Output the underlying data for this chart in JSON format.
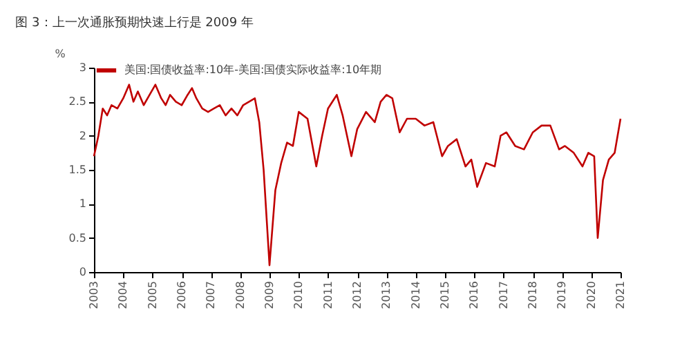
{
  "chart_data": {
    "type": "line",
    "title": "图 3：上一次通胀预期快速上行是 2009 年",
    "ylabel": "%",
    "legend": "top",
    "x": [
      2003.0,
      2003.15,
      2003.3,
      2003.45,
      2003.6,
      2003.8,
      2004.0,
      2004.2,
      2004.35,
      2004.5,
      2004.7,
      2004.9,
      2005.1,
      2005.3,
      2005.45,
      2005.6,
      2005.8,
      2006.0,
      2006.2,
      2006.35,
      2006.5,
      2006.7,
      2006.9,
      2007.1,
      2007.3,
      2007.5,
      2007.7,
      2007.9,
      2008.1,
      2008.3,
      2008.5,
      2008.65,
      2008.8,
      2008.9,
      2009.0,
      2009.2,
      2009.4,
      2009.6,
      2009.8,
      2010.0,
      2010.3,
      2010.6,
      2010.8,
      2011.0,
      2011.3,
      2011.5,
      2011.8,
      2012.0,
      2012.3,
      2012.6,
      2012.8,
      2013.0,
      2013.2,
      2013.45,
      2013.7,
      2014.0,
      2014.3,
      2014.6,
      2014.9,
      2015.1,
      2015.4,
      2015.7,
      2015.9,
      2016.1,
      2016.4,
      2016.7,
      2016.9,
      2017.1,
      2017.4,
      2017.7,
      2018.0,
      2018.3,
      2018.6,
      2018.9,
      2019.1,
      2019.4,
      2019.7,
      2019.9,
      2020.1,
      2020.22,
      2020.4,
      2020.6,
      2020.8,
      2021.0
    ],
    "series": [
      {
        "name": "美国:国债收益率:10年-美国:国债实际收益率:10年期",
        "color": "#c00000",
        "values": [
          1.7,
          2.0,
          2.4,
          2.3,
          2.45,
          2.4,
          2.55,
          2.75,
          2.5,
          2.65,
          2.45,
          2.6,
          2.75,
          2.55,
          2.45,
          2.6,
          2.5,
          2.45,
          2.6,
          2.7,
          2.55,
          2.4,
          2.35,
          2.4,
          2.45,
          2.3,
          2.4,
          2.3,
          2.45,
          2.5,
          2.55,
          2.2,
          1.5,
          0.8,
          0.1,
          1.2,
          1.6,
          1.9,
          1.85,
          2.35,
          2.25,
          1.55,
          2.0,
          2.4,
          2.6,
          2.3,
          1.7,
          2.1,
          2.35,
          2.2,
          2.5,
          2.6,
          2.55,
          2.05,
          2.25,
          2.25,
          2.15,
          2.2,
          1.7,
          1.85,
          1.95,
          1.55,
          1.65,
          1.25,
          1.6,
          1.55,
          2.0,
          2.05,
          1.85,
          1.8,
          2.05,
          2.15,
          2.15,
          1.8,
          1.85,
          1.75,
          1.55,
          1.75,
          1.7,
          0.5,
          1.35,
          1.65,
          1.75,
          2.25
        ]
      }
    ],
    "xlim": [
      2003,
      2021
    ],
    "xticks": [
      2003,
      2004,
      2005,
      2006,
      2007,
      2008,
      2009,
      2010,
      2011,
      2012,
      2013,
      2014,
      2015,
      2016,
      2017,
      2018,
      2019,
      2020,
      2021
    ],
    "ylim": [
      0,
      3
    ],
    "yticks": [
      0,
      0.5,
      1,
      1.5,
      2,
      2.5,
      3
    ],
    "grid": false
  }
}
